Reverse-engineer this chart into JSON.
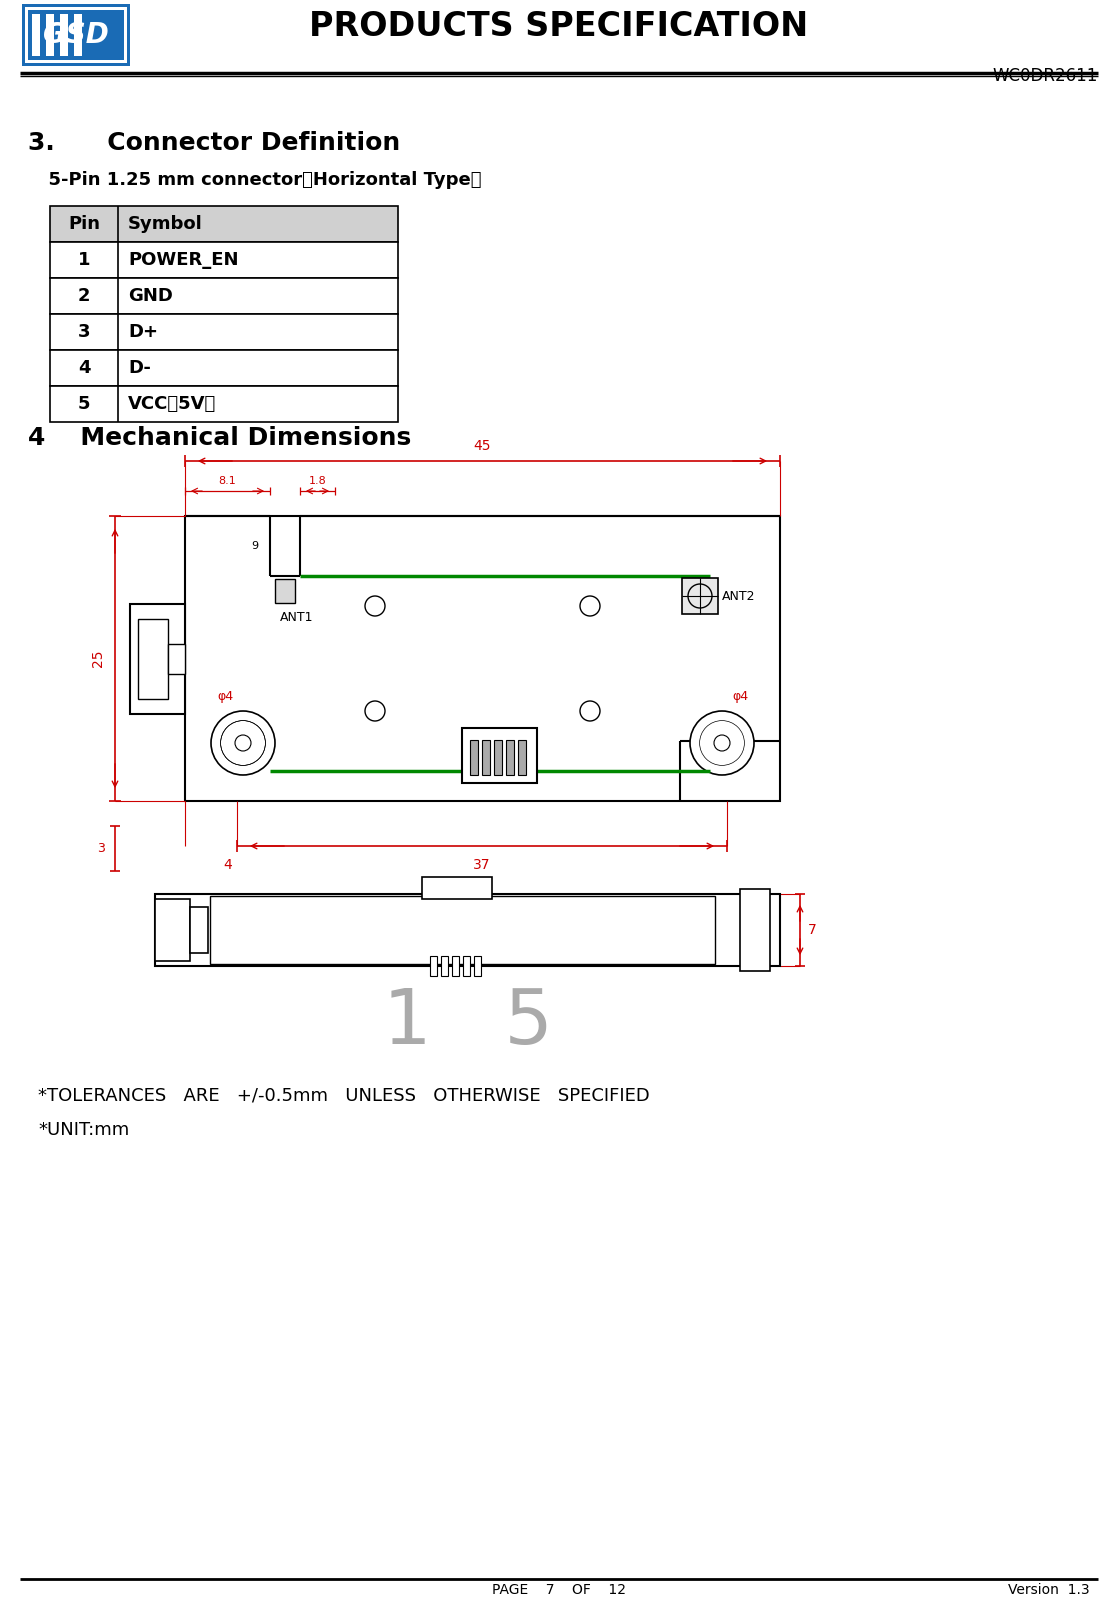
{
  "header_title": "PRODUCTS SPECIFICATION",
  "header_code": "WC0DR2611",
  "section3_title": "3.      Connector Definition",
  "section3_sub": "  5-Pin 1.25 mm connector（Horizontal Type）",
  "table_headers": [
    "Pin",
    "Symbol"
  ],
  "table_rows": [
    [
      "1",
      "POWER_EN"
    ],
    [
      "2",
      "GND"
    ],
    [
      "3",
      "D+"
    ],
    [
      "4",
      "D-"
    ],
    [
      "5",
      "VCC（5V）"
    ]
  ],
  "section4_title": "4    Mechanical Dimensions",
  "tolerances_line1": "*TOLERANCES   ARE   +/-0.5mm   UNLESS   OTHERWISE   SPECIFIED",
  "tolerances_line2": "*UNIT:mm",
  "footer_page": "PAGE    7    OF    12",
  "footer_version": "Version  1.3",
  "bg_color": "#ffffff",
  "text_color": "#000000",
  "table_header_bg": "#d0d0d0",
  "diagram_color": "#000000",
  "dim_line_color": "#cc0000",
  "green_line_color": "#008800"
}
